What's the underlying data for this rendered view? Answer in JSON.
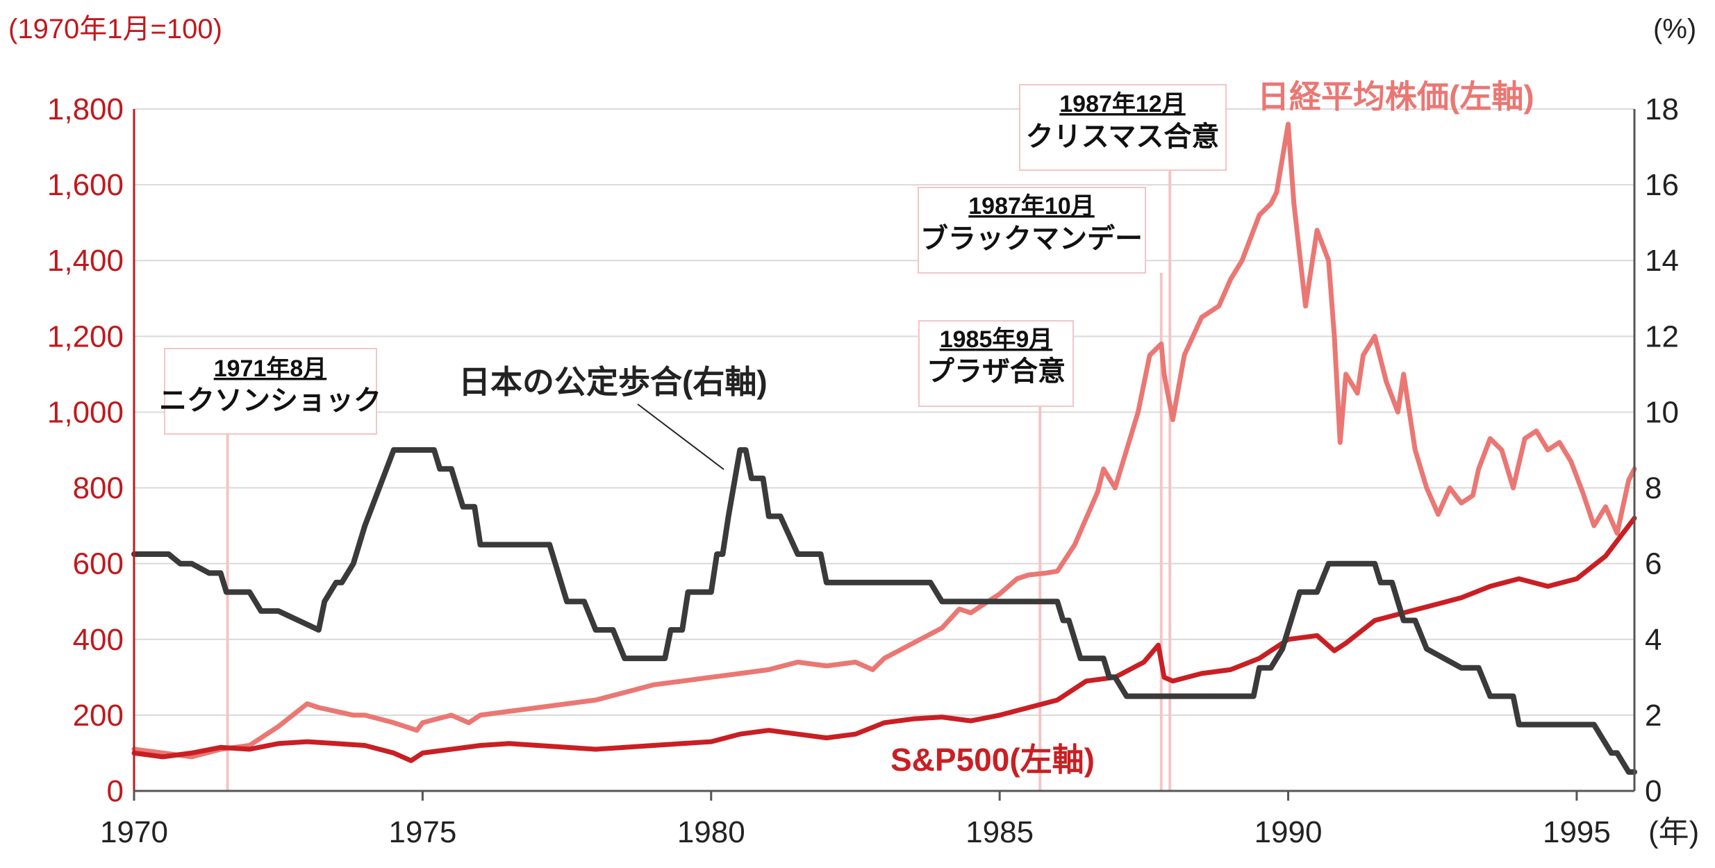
{
  "colors": {
    "nikkei": "#ea7773",
    "sp500": "#c91f23",
    "jp_rate": "#3a3a3a",
    "left_axis": "#c0191d",
    "event_line": "#f4c5c5",
    "grid": "#d9d9d9"
  },
  "axes": {
    "left_unit": "(1970年1月=100)",
    "right_unit": "(%)",
    "x_unit": "(年)",
    "left_ticks": [
      "0",
      "200",
      "400",
      "600",
      "800",
      "1,000",
      "1,200",
      "1,400",
      "1,600",
      "1,800"
    ],
    "right_ticks": [
      "0",
      "2",
      "4",
      "6",
      "8",
      "10",
      "12",
      "14",
      "16",
      "18"
    ],
    "x_ticks": [
      "1970",
      "1975",
      "1980",
      "1985",
      "1990",
      "1995"
    ]
  },
  "annotations": [
    {
      "date": "1971年8月",
      "name": "ニクソンショック"
    },
    {
      "date": "1985年9月",
      "name": "プラザ合意"
    },
    {
      "date": "1987年10月",
      "name": "ブラックマンデー"
    },
    {
      "date": "1987年12月",
      "name": "クリスマス合意"
    }
  ],
  "chart_data": {
    "type": "line",
    "xlim": [
      1970,
      1996
    ],
    "ylim_left": [
      0,
      1800
    ],
    "ylim_right": [
      0,
      18
    ],
    "grid": true,
    "series": [
      {
        "name": "日経平均株価(左軸)",
        "axis": "left",
        "x": [
          1970.0,
          1970.5,
          1971.0,
          1971.5,
          1972.0,
          1972.5,
          1973.0,
          1973.2,
          1973.5,
          1973.8,
          1974.0,
          1974.5,
          1974.9,
          1975.0,
          1975.5,
          1975.8,
          1976.0,
          1976.5,
          1977.0,
          1977.5,
          1978.0,
          1978.5,
          1979.0,
          1979.5,
          1980.0,
          1980.5,
          1981.0,
          1981.5,
          1982.0,
          1982.5,
          1982.8,
          1983.0,
          1983.5,
          1984.0,
          1984.3,
          1984.5,
          1984.8,
          1985.0,
          1985.3,
          1985.5,
          1985.8,
          1986.0,
          1986.3,
          1986.5,
          1986.7,
          1986.8,
          1987.0,
          1987.2,
          1987.4,
          1987.6,
          1987.8,
          1987.85,
          1988.0,
          1988.2,
          1988.5,
          1988.8,
          1989.0,
          1989.2,
          1989.5,
          1989.7,
          1989.8,
          1990.0,
          1990.1,
          1990.3,
          1990.5,
          1990.7,
          1990.8,
          1990.9,
          1991.0,
          1991.2,
          1991.3,
          1991.5,
          1991.7,
          1991.9,
          1992.0,
          1992.2,
          1992.4,
          1992.6,
          1992.8,
          1993.0,
          1993.2,
          1993.3,
          1993.5,
          1993.7,
          1993.9,
          1994.1,
          1994.3,
          1994.5,
          1994.7,
          1994.9,
          1995.1,
          1995.3,
          1995.5,
          1995.7,
          1995.9,
          1996.0
        ],
        "values": [
          110,
          100,
          90,
          110,
          120,
          170,
          230,
          220,
          210,
          200,
          200,
          180,
          160,
          180,
          200,
          180,
          200,
          210,
          220,
          230,
          240,
          260,
          280,
          290,
          300,
          310,
          320,
          340,
          330,
          340,
          320,
          350,
          390,
          430,
          480,
          470,
          500,
          520,
          560,
          570,
          575,
          580,
          650,
          720,
          790,
          850,
          800,
          900,
          1000,
          1150,
          1180,
          1100,
          980,
          1150,
          1250,
          1280,
          1350,
          1400,
          1520,
          1550,
          1580,
          1760,
          1550,
          1280,
          1480,
          1400,
          1200,
          920,
          1100,
          1050,
          1150,
          1200,
          1080,
          1000,
          1100,
          900,
          800,
          730,
          800,
          760,
          780,
          850,
          930,
          900,
          800,
          930,
          950,
          900,
          920,
          870,
          790,
          700,
          750,
          680,
          820,
          850
        ]
      },
      {
        "name": "S&P500(左軸)",
        "axis": "left",
        "x": [
          1970.0,
          1970.5,
          1971.0,
          1971.5,
          1972.0,
          1972.5,
          1973.0,
          1973.5,
          1974.0,
          1974.5,
          1974.8,
          1975.0,
          1975.5,
          1976.0,
          1976.5,
          1977.0,
          1977.5,
          1978.0,
          1978.5,
          1979.0,
          1979.5,
          1980.0,
          1980.5,
          1981.0,
          1981.5,
          1982.0,
          1982.5,
          1983.0,
          1983.5,
          1984.0,
          1984.5,
          1985.0,
          1985.5,
          1986.0,
          1986.5,
          1987.0,
          1987.5,
          1987.75,
          1987.85,
          1988.0,
          1988.5,
          1989.0,
          1989.5,
          1990.0,
          1990.5,
          1990.8,
          1991.0,
          1991.5,
          1992.0,
          1992.5,
          1993.0,
          1993.5,
          1994.0,
          1994.5,
          1995.0,
          1995.5,
          1996.0
        ],
        "values": [
          100,
          90,
          100,
          115,
          110,
          125,
          130,
          125,
          120,
          100,
          80,
          100,
          110,
          120,
          125,
          120,
          115,
          110,
          115,
          120,
          125,
          130,
          150,
          160,
          150,
          140,
          150,
          180,
          190,
          195,
          185,
          200,
          220,
          240,
          290,
          300,
          340,
          385,
          300,
          290,
          310,
          320,
          350,
          400,
          410,
          370,
          390,
          450,
          470,
          490,
          510,
          540,
          560,
          540,
          560,
          620,
          720
        ]
      },
      {
        "name": "日本の公定歩合(右軸)",
        "axis": "right",
        "x": [
          1970.0,
          1970.6,
          1970.8,
          1971.0,
          1971.3,
          1971.5,
          1971.6,
          1972.0,
          1972.2,
          1972.5,
          1973.2,
          1973.3,
          1973.5,
          1973.6,
          1973.8,
          1974.0,
          1974.5,
          1975.2,
          1975.3,
          1975.5,
          1975.6,
          1975.7,
          1975.9,
          1976.0,
          1976.5,
          1977.2,
          1977.3,
          1977.5,
          1977.8,
          1978.0,
          1978.3,
          1978.5,
          1979.2,
          1979.3,
          1979.5,
          1979.6,
          1980.0,
          1980.1,
          1980.2,
          1980.3,
          1980.5,
          1980.6,
          1980.7,
          1980.9,
          1981.0,
          1981.2,
          1981.5,
          1981.9,
          1982.0,
          1983.5,
          1983.8,
          1984.0,
          1985.0,
          1986.0,
          1986.1,
          1986.2,
          1986.4,
          1986.8,
          1986.9,
          1987.0,
          1987.2,
          1988.0,
          1989.0,
          1989.4,
          1989.5,
          1989.7,
          1989.9,
          1990.0,
          1990.2,
          1990.5,
          1990.7,
          1991.0,
          1991.5,
          1991.6,
          1991.8,
          1992.0,
          1992.2,
          1992.4,
          1993.0,
          1993.3,
          1993.5,
          1993.9,
          1994.0,
          1995.0,
          1995.3,
          1995.6,
          1995.7,
          1995.9,
          1996.0
        ],
        "values": [
          6.25,
          6.25,
          6.0,
          6.0,
          5.75,
          5.75,
          5.25,
          5.25,
          4.75,
          4.75,
          4.25,
          5.0,
          5.5,
          5.5,
          6.0,
          7.0,
          9.0,
          9.0,
          8.5,
          8.5,
          8.0,
          7.5,
          7.5,
          6.5,
          6.5,
          6.5,
          6.0,
          5.0,
          5.0,
          4.25,
          4.25,
          3.5,
          3.5,
          4.25,
          4.25,
          5.25,
          5.25,
          6.25,
          6.25,
          7.25,
          9.0,
          9.0,
          8.25,
          8.25,
          7.25,
          7.25,
          6.25,
          6.25,
          5.5,
          5.5,
          5.5,
          5.0,
          5.0,
          5.0,
          4.5,
          4.5,
          3.5,
          3.5,
          3.0,
          3.0,
          2.5,
          2.5,
          2.5,
          2.5,
          3.25,
          3.25,
          3.75,
          4.25,
          5.25,
          5.25,
          6.0,
          6.0,
          6.0,
          5.5,
          5.5,
          4.5,
          4.5,
          3.75,
          3.25,
          3.25,
          2.5,
          2.5,
          1.75,
          1.75,
          1.75,
          1.0,
          1.0,
          0.5,
          0.5
        ]
      }
    ]
  }
}
